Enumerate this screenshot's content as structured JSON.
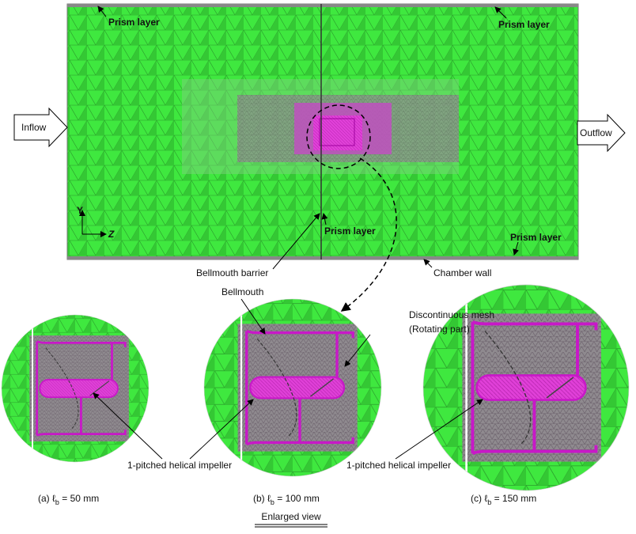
{
  "domain_labels": {
    "inflow": "Inflow",
    "outflow": "Outflow",
    "prism_layers": [
      "Prism layer",
      "Prism layer",
      "Prism layer",
      "Prism layer"
    ],
    "axis_y": "Y",
    "axis_z": "Z",
    "bellmouth_barrier": "Bellmouth barrier",
    "chamber_wall": "Chamber wall"
  },
  "enlarged": {
    "bellmouth": "Bellmouth",
    "discontinuous_mesh": [
      "Discontinuous mesh",
      "(Rotating part)"
    ],
    "impeller_labels": [
      "1-pitched helical impeller",
      "1-pitched helical impeller"
    ],
    "captions": [
      {
        "prefix": "(a) ℓ",
        "sub": "b",
        "rest": " = 50 mm"
      },
      {
        "prefix": "(b) ℓ",
        "sub": "b",
        "rest": " = 100 mm"
      },
      {
        "prefix": "(c) ℓ",
        "sub": "b",
        "rest": " = 150 mm"
      }
    ],
    "title": "Enlarged view"
  }
}
